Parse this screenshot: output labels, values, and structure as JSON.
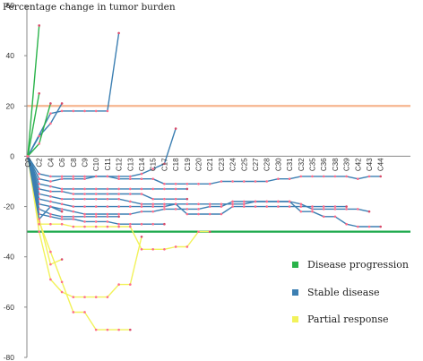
{
  "chart_data": {
    "type": "line",
    "title": "Percentage change in tumor burden",
    "xlabel": "",
    "ylabel": "",
    "ylim": [
      -80,
      60
    ],
    "yticks": [
      60,
      40,
      20,
      0,
      -20,
      -40,
      -60,
      -80
    ],
    "categories": [
      "C0",
      "C2",
      "C4",
      "C6",
      "C8",
      "C9",
      "C10",
      "C11",
      "C12",
      "C13",
      "C14",
      "C15",
      "C17",
      "C18",
      "C19",
      "C20",
      "C21",
      "C23",
      "C24",
      "C25",
      "C27",
      "C28",
      "C30",
      "C31",
      "C32",
      "C35",
      "C36",
      "C38",
      "C39",
      "C42",
      "C43",
      "C44"
    ],
    "reference_lines": [
      {
        "value": 20,
        "color": "#f6b58f"
      },
      {
        "value": -30,
        "color": "#1aa84a"
      }
    ],
    "legend": [
      {
        "label": "Disease progression",
        "color": "#2ab34a"
      },
      {
        "label": "Stable disease",
        "color": "#3c7fb2"
      },
      {
        "label": "Partial response",
        "color": "#f2f25a"
      }
    ],
    "legend_position": "right",
    "series": [
      {
        "group": "Disease progression",
        "color": "#2ab34a",
        "points": [
          [
            0,
            0
          ],
          [
            1,
            52
          ]
        ]
      },
      {
        "group": "Disease progression",
        "color": "#2ab34a",
        "points": [
          [
            0,
            0
          ],
          [
            1,
            25
          ]
        ]
      },
      {
        "group": "Disease progression",
        "color": "#2ab34a",
        "points": [
          [
            0,
            0
          ],
          [
            1,
            5
          ],
          [
            2,
            21
          ]
        ]
      },
      {
        "group": "Stable disease",
        "color": "#3c7fb2",
        "points": [
          [
            0,
            0
          ],
          [
            2,
            17
          ],
          [
            3,
            18
          ],
          [
            4,
            18
          ],
          [
            5,
            18
          ],
          [
            6,
            18
          ],
          [
            7,
            18
          ],
          [
            8,
            49
          ]
        ]
      },
      {
        "group": "Stable disease",
        "color": "#3c7fb2",
        "points": [
          [
            0,
            0
          ],
          [
            1,
            8
          ],
          [
            2,
            13
          ],
          [
            3,
            21
          ]
        ]
      },
      {
        "group": "Stable disease",
        "color": "#3c7fb2",
        "points": [
          [
            0,
            0
          ],
          [
            1,
            -7
          ],
          [
            2,
            -8
          ],
          [
            3,
            -8
          ],
          [
            4,
            -8
          ],
          [
            5,
            -8
          ],
          [
            6,
            -8
          ],
          [
            7,
            -8
          ],
          [
            8,
            -8
          ],
          [
            9,
            -8
          ],
          [
            10,
            -7
          ],
          [
            11,
            -5
          ],
          [
            12,
            -3
          ],
          [
            13,
            11
          ]
        ]
      },
      {
        "group": "Stable disease",
        "color": "#3c7fb2",
        "points": [
          [
            0,
            0
          ],
          [
            1,
            -9
          ],
          [
            2,
            -10
          ],
          [
            3,
            -9
          ],
          [
            4,
            -9
          ],
          [
            5,
            -9
          ],
          [
            6,
            -8
          ],
          [
            7,
            -8
          ],
          [
            8,
            -9
          ],
          [
            9,
            -9
          ],
          [
            10,
            -9
          ],
          [
            11,
            -9
          ],
          [
            12,
            -11
          ],
          [
            13,
            -11
          ],
          [
            14,
            -11
          ],
          [
            15,
            -11
          ],
          [
            16,
            -11
          ],
          [
            17,
            -10
          ],
          [
            18,
            -10
          ],
          [
            19,
            -10
          ],
          [
            20,
            -10
          ],
          [
            21,
            -10
          ],
          [
            22,
            -9
          ],
          [
            23,
            -9
          ],
          [
            24,
            -8
          ],
          [
            25,
            -8
          ],
          [
            26,
            -8
          ],
          [
            27,
            -8
          ],
          [
            28,
            -8
          ],
          [
            29,
            -9
          ],
          [
            30,
            -8
          ],
          [
            31,
            -8
          ]
        ]
      },
      {
        "group": "Stable disease",
        "color": "#3c7fb2",
        "points": [
          [
            0,
            0
          ],
          [
            1,
            -11
          ],
          [
            2,
            -12
          ],
          [
            3,
            -13
          ],
          [
            4,
            -13
          ],
          [
            5,
            -13
          ],
          [
            6,
            -13
          ],
          [
            7,
            -13
          ],
          [
            8,
            -13
          ],
          [
            9,
            -13
          ],
          [
            10,
            -13
          ],
          [
            11,
            -13
          ],
          [
            12,
            -13
          ],
          [
            13,
            -13
          ],
          [
            14,
            -13
          ]
        ]
      },
      {
        "group": "Stable disease",
        "color": "#3c7fb2",
        "points": [
          [
            0,
            0
          ],
          [
            1,
            -13
          ],
          [
            2,
            -14
          ],
          [
            3,
            -14
          ],
          [
            4,
            -15
          ],
          [
            5,
            -15
          ],
          [
            6,
            -15
          ],
          [
            7,
            -15
          ],
          [
            8,
            -15
          ],
          [
            9,
            -15
          ],
          [
            10,
            -15
          ],
          [
            11,
            -17
          ],
          [
            12,
            -17
          ],
          [
            13,
            -17
          ],
          [
            14,
            -17
          ]
        ]
      },
      {
        "group": "Stable disease",
        "color": "#3c7fb2",
        "points": [
          [
            0,
            0
          ],
          [
            1,
            -15
          ],
          [
            2,
            -16
          ],
          [
            3,
            -17
          ],
          [
            4,
            -17
          ],
          [
            5,
            -17
          ],
          [
            6,
            -17
          ],
          [
            7,
            -17
          ],
          [
            8,
            -17
          ],
          [
            9,
            -18
          ],
          [
            10,
            -19
          ],
          [
            11,
            -19
          ],
          [
            12,
            -19
          ],
          [
            13,
            -19
          ],
          [
            14,
            -19
          ],
          [
            15,
            -19
          ],
          [
            16,
            -19
          ],
          [
            17,
            -19
          ],
          [
            18,
            -19
          ],
          [
            19,
            -19
          ],
          [
            20,
            -18
          ],
          [
            21,
            -18
          ],
          [
            22,
            -18
          ],
          [
            23,
            -18
          ],
          [
            24,
            -19
          ],
          [
            25,
            -21
          ],
          [
            26,
            -21
          ],
          [
            27,
            -21
          ],
          [
            28,
            -21
          ],
          [
            29,
            -21
          ],
          [
            30,
            -22
          ]
        ]
      },
      {
        "group": "Stable disease",
        "color": "#3c7fb2",
        "points": [
          [
            0,
            0
          ],
          [
            1,
            -17
          ],
          [
            2,
            -18
          ],
          [
            3,
            -19
          ],
          [
            4,
            -20
          ],
          [
            5,
            -20
          ],
          [
            6,
            -20
          ],
          [
            7,
            -20
          ],
          [
            8,
            -20
          ],
          [
            9,
            -20
          ],
          [
            10,
            -20
          ],
          [
            11,
            -20
          ],
          [
            12,
            -20
          ],
          [
            13,
            -19
          ],
          [
            14,
            -23
          ],
          [
            15,
            -23
          ],
          [
            16,
            -23
          ],
          [
            17,
            -23
          ],
          [
            18,
            -20
          ],
          [
            19,
            -20
          ],
          [
            20,
            -20
          ],
          [
            21,
            -20
          ],
          [
            22,
            -20
          ],
          [
            23,
            -20
          ],
          [
            24,
            -20
          ],
          [
            25,
            -20
          ],
          [
            26,
            -20
          ],
          [
            27,
            -20
          ],
          [
            28,
            -20
          ]
        ]
      },
      {
        "group": "Stable disease",
        "color": "#3c7fb2",
        "points": [
          [
            0,
            0
          ],
          [
            1,
            -19
          ],
          [
            2,
            -20
          ],
          [
            3,
            -21
          ],
          [
            4,
            -22
          ],
          [
            5,
            -23
          ],
          [
            6,
            -23
          ],
          [
            7,
            -23
          ],
          [
            8,
            -23
          ],
          [
            9,
            -23
          ],
          [
            10,
            -22
          ],
          [
            11,
            -22
          ],
          [
            12,
            -21
          ],
          [
            13,
            -21
          ],
          [
            14,
            -21
          ],
          [
            15,
            -21
          ],
          [
            16,
            -20
          ],
          [
            17,
            -20
          ],
          [
            18,
            -18
          ],
          [
            19,
            -18
          ],
          [
            20,
            -18
          ],
          [
            21,
            -18
          ],
          [
            22,
            -18
          ],
          [
            23,
            -18
          ],
          [
            24,
            -22
          ],
          [
            25,
            -22
          ],
          [
            26,
            -24
          ],
          [
            27,
            -24
          ],
          [
            28,
            -27
          ],
          [
            29,
            -28
          ],
          [
            30,
            -28
          ],
          [
            31,
            -28
          ]
        ]
      },
      {
        "group": "Stable disease",
        "color": "#3c7fb2",
        "points": [
          [
            0,
            0
          ],
          [
            1,
            -21
          ],
          [
            2,
            -23
          ],
          [
            3,
            -24
          ],
          [
            4,
            -24
          ],
          [
            5,
            -24
          ],
          [
            6,
            -24
          ],
          [
            7,
            -24
          ],
          [
            8,
            -24
          ]
        ]
      },
      {
        "group": "Stable disease",
        "color": "#3c7fb2",
        "points": [
          [
            0,
            0
          ],
          [
            1,
            -23
          ],
          [
            2,
            -24
          ],
          [
            3,
            -25
          ],
          [
            4,
            -25
          ],
          [
            5,
            -26
          ],
          [
            6,
            -26
          ],
          [
            7,
            -26
          ],
          [
            8,
            -27
          ],
          [
            9,
            -27
          ],
          [
            10,
            -27
          ],
          [
            11,
            -27
          ],
          [
            12,
            -27
          ]
        ]
      },
      {
        "group": "Stable disease",
        "color": "#3c7fb2",
        "points": [
          [
            0,
            0
          ],
          [
            1,
            -25
          ],
          [
            2,
            -20
          ],
          [
            3,
            -22
          ]
        ]
      },
      {
        "group": "Partial response",
        "color": "#f2f25a",
        "points": [
          [
            0,
            0
          ],
          [
            1,
            -25
          ],
          [
            2,
            -43
          ],
          [
            3,
            -41
          ]
        ]
      },
      {
        "group": "Partial response",
        "color": "#f2f25a",
        "points": [
          [
            0,
            0
          ],
          [
            1,
            -30
          ],
          [
            2,
            -49
          ],
          [
            3,
            -54
          ],
          [
            4,
            -56
          ],
          [
            5,
            -56
          ],
          [
            6,
            -56
          ],
          [
            7,
            -56
          ],
          [
            8,
            -51
          ],
          [
            9,
            -51
          ],
          [
            10,
            -32
          ]
        ]
      },
      {
        "group": "Partial response",
        "color": "#f2f25a",
        "points": [
          [
            0,
            0
          ],
          [
            1,
            -26
          ],
          [
            2,
            -38
          ],
          [
            3,
            -50
          ],
          [
            4,
            -62
          ],
          [
            5,
            -62
          ],
          [
            6,
            -69
          ],
          [
            7,
            -69
          ],
          [
            8,
            -69
          ],
          [
            9,
            -69
          ]
        ]
      },
      {
        "group": "Partial response",
        "color": "#f2f25a",
        "points": [
          [
            0,
            0
          ],
          [
            1,
            -27
          ],
          [
            2,
            -27
          ],
          [
            3,
            -27
          ],
          [
            4,
            -28
          ],
          [
            5,
            -28
          ],
          [
            6,
            -28
          ],
          [
            7,
            -28
          ],
          [
            8,
            -28
          ],
          [
            9,
            -28
          ],
          [
            10,
            -37
          ],
          [
            11,
            -37
          ],
          [
            12,
            -37
          ],
          [
            13,
            -36
          ],
          [
            14,
            -36
          ],
          [
            15,
            -30
          ],
          [
            16,
            -30
          ]
        ]
      }
    ]
  }
}
